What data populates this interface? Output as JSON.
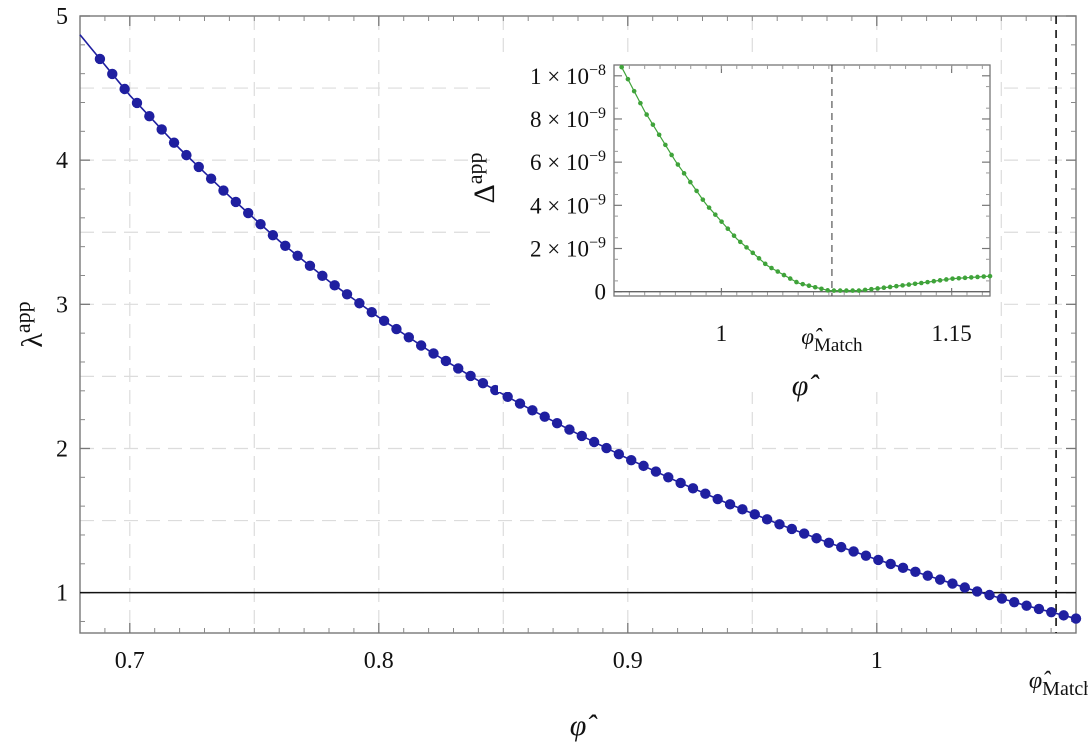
{
  "chart_data": [
    {
      "type": "scatter",
      "xlabel": "φ̂",
      "ylabel": "λ",
      "ylabel_superscript": "app",
      "xlim": [
        0.68,
        1.08
      ],
      "ylim": [
        0.72,
        5.0
      ],
      "x_ticks": [
        0.7,
        0.8,
        0.9,
        1.0
      ],
      "x_tick_labels": [
        "0.7",
        "0.8",
        "0.9",
        "1"
      ],
      "y_ticks": [
        1,
        2,
        3,
        4,
        5
      ],
      "y_tick_labels": [
        "1",
        "2",
        "3",
        "4",
        "5"
      ],
      "match_marker": {
        "x": 1.072,
        "label": "φ̂",
        "label_subscript": "Match"
      },
      "reference_line_y": 1,
      "grid": true,
      "series": [
        {
          "color": "#1f1fa0",
          "curve_x": [
            0.68,
            0.7,
            0.72,
            0.74,
            0.76,
            0.78,
            0.8,
            0.82,
            0.84,
            0.86,
            0.88,
            0.9,
            0.92,
            0.94,
            0.96,
            0.98,
            1.0,
            1.02,
            1.04,
            1.06,
            1.08
          ],
          "curve_y": [
            4.87,
            4.45,
            4.08,
            3.75,
            3.44,
            3.16,
            2.91,
            2.68,
            2.47,
            2.28,
            2.1,
            1.93,
            1.77,
            1.62,
            1.48,
            1.35,
            1.23,
            1.12,
            1.01,
            0.91,
            0.82
          ],
          "point_start": 0.688,
          "point_end": 1.08,
          "point_count": 80
        }
      ]
    },
    {
      "type": "scatter",
      "xlabel": "φ̂",
      "ylabel": "Δ",
      "ylabel_superscript": "app",
      "xlim": [
        0.93,
        1.175
      ],
      "ylim": [
        -2e-10,
        1.05e-08
      ],
      "x_ticks": [
        1.0,
        1.15
      ],
      "x_tick_labels": [
        "1",
        "1.15"
      ],
      "y_ticks": [
        0,
        2e-09,
        4e-09,
        6e-09,
        8e-09,
        1e-08
      ],
      "y_tick_labels": [
        {
          "mant": "0",
          "exp": ""
        },
        {
          "mant": "2 × 10",
          "exp": "−9"
        },
        {
          "mant": "4 × 10",
          "exp": "−9"
        },
        {
          "mant": "6 × 10",
          "exp": "−9"
        },
        {
          "mant": "8 × 10",
          "exp": "−9"
        },
        {
          "mant": "1 × 10",
          "exp": "−8"
        }
      ],
      "match_marker": {
        "x": 1.072,
        "label": "φ̂",
        "label_subscript": "Match"
      },
      "reference_line_y": 0,
      "grid": false,
      "series": [
        {
          "color": "#3fa33a",
          "curve_x": [
            0.935,
            0.95,
            0.97,
            0.99,
            1.01,
            1.03,
            1.05,
            1.07,
            1.09,
            1.11,
            1.13,
            1.15,
            1.175
          ],
          "curve_y": [
            1.04e-08,
            8.35e-09,
            6.05e-09,
            4.05e-09,
            2.45e-09,
            1.2e-09,
            4e-10,
            5e-11,
            5e-11,
            2.2e-10,
            4e-10,
            6e-10,
            7.2e-10
          ],
          "point_start": 0.935,
          "point_end": 1.175,
          "point_count": 60
        }
      ]
    }
  ]
}
